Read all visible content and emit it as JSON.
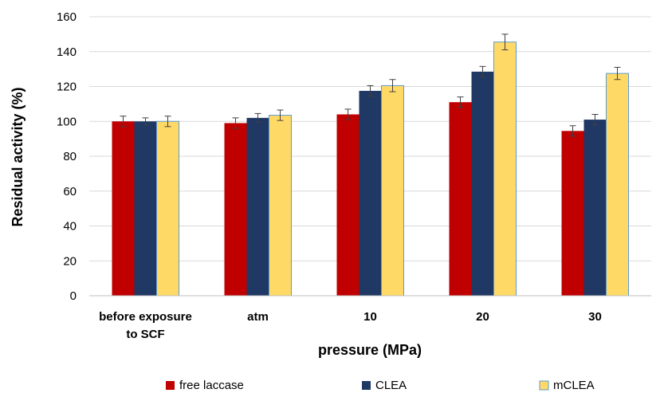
{
  "chart_data": {
    "type": "bar",
    "xlabel": "pressure (MPa)",
    "ylabel": "Residual activity (%)",
    "ylim": [
      0,
      160
    ],
    "yticks": [
      0,
      20,
      40,
      60,
      80,
      100,
      120,
      140,
      160
    ],
    "grid": true,
    "legend": "bottom",
    "categories": [
      [
        "before exposure",
        "to SCF"
      ],
      [
        "atm"
      ],
      [
        "10"
      ],
      [
        "20"
      ],
      [
        "30"
      ]
    ],
    "series": [
      {
        "name": "free laccase",
        "color": "#C00000",
        "values": [
          100,
          99,
          104,
          111,
          94.5
        ],
        "errors": [
          3,
          3,
          3,
          3,
          3
        ]
      },
      {
        "name": "CLEA",
        "color": "#1F3864",
        "values": [
          100,
          102,
          117.5,
          128.5,
          101
        ],
        "errors": [
          2,
          2.5,
          3,
          3,
          3
        ]
      },
      {
        "name": "mCLEA",
        "color": "#FFD966",
        "values": [
          100,
          103.5,
          120.5,
          145.5,
          127.5
        ],
        "errors": [
          3,
          3,
          3.5,
          4.5,
          3.5
        ]
      }
    ]
  }
}
